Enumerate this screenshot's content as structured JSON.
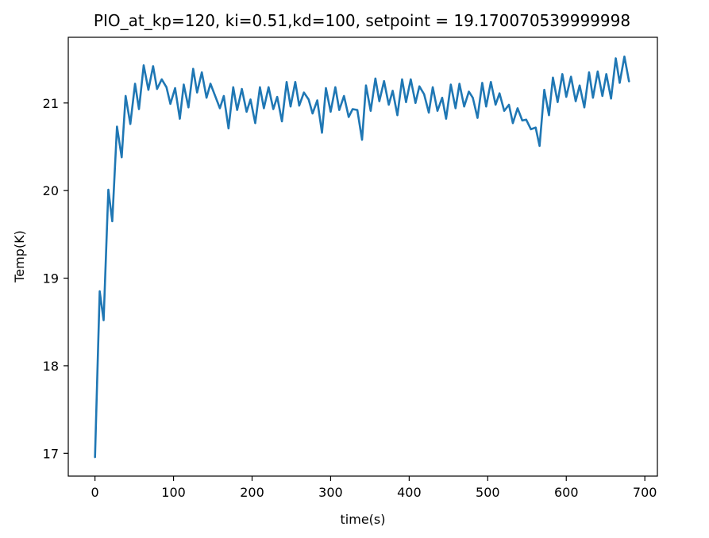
{
  "chart_data": {
    "type": "line",
    "title": "PIO_at_kp=120, ki=0.51,kd=100, setpoint = 19.170070539999998",
    "xlabel": "time(s)",
    "ylabel": "Temp(K)",
    "xlim": [
      -34,
      716
    ],
    "ylim": [
      16.74,
      21.75
    ],
    "xticks": [
      0,
      100,
      200,
      300,
      400,
      500,
      600,
      700
    ],
    "yticks": [
      17,
      18,
      19,
      20,
      21
    ],
    "xtick_labels": [
      "0",
      "100",
      "200",
      "300",
      "400",
      "500",
      "600",
      "700"
    ],
    "ytick_labels": [
      "17",
      "18",
      "19",
      "20",
      "21"
    ],
    "grid": false,
    "colors": {
      "line": "#1f77b4",
      "axes": "#000000",
      "background": "#ffffff"
    },
    "series": [
      {
        "x": [
          0,
          6,
          11,
          17,
          22,
          28,
          34,
          39,
          45,
          51,
          56,
          62,
          68,
          74,
          79,
          85,
          91,
          96,
          102,
          108,
          113,
          119,
          125,
          130,
          136,
          142,
          147,
          153,
          159,
          164,
          170,
          176,
          181,
          187,
          193,
          198,
          204,
          210,
          215,
          221,
          227,
          232,
          238,
          244,
          249,
          255,
          260,
          266,
          272,
          277,
          283,
          289,
          294,
          300,
          306,
          311,
          317,
          323,
          328,
          334,
          340,
          345,
          351,
          357,
          362,
          368,
          374,
          379,
          385,
          391,
          396,
          402,
          408,
          413,
          419,
          425,
          430,
          436,
          442,
          447,
          453,
          459,
          464,
          470,
          476,
          481,
          487,
          493,
          498,
          504,
          510,
          515,
          521,
          527,
          532,
          538,
          544,
          549,
          555,
          561,
          566,
          572,
          578,
          583,
          589,
          595,
          600,
          606,
          612,
          617,
          623,
          629,
          634,
          640,
          646,
          651,
          657,
          663,
          668,
          674,
          680
        ],
        "values": [
          16.95,
          18.85,
          18.52,
          20.01,
          19.65,
          20.73,
          20.38,
          21.08,
          20.76,
          21.22,
          20.93,
          21.43,
          21.15,
          21.42,
          21.16,
          21.27,
          21.18,
          20.99,
          21.17,
          20.82,
          21.21,
          20.95,
          21.39,
          21.12,
          21.35,
          21.06,
          21.22,
          21.08,
          20.94,
          21.08,
          20.71,
          21.18,
          20.92,
          21.16,
          20.9,
          21.04,
          20.77,
          21.18,
          20.94,
          21.18,
          20.93,
          21.07,
          20.79,
          21.24,
          20.96,
          21.24,
          20.97,
          21.12,
          21.04,
          20.88,
          21.03,
          20.66,
          21.17,
          20.9,
          21.18,
          20.92,
          21.08,
          20.84,
          20.93,
          20.92,
          20.58,
          21.2,
          20.91,
          21.28,
          21.02,
          21.25,
          20.98,
          21.14,
          20.86,
          21.27,
          21.01,
          21.27,
          21.0,
          21.19,
          21.1,
          20.89,
          21.18,
          20.91,
          21.06,
          20.82,
          21.21,
          20.94,
          21.22,
          20.96,
          21.13,
          21.06,
          20.83,
          21.23,
          20.96,
          21.24,
          20.98,
          21.11,
          20.91,
          20.98,
          20.77,
          20.94,
          20.8,
          20.81,
          20.7,
          20.72,
          20.51,
          21.15,
          20.86,
          21.29,
          21.01,
          21.33,
          21.07,
          21.3,
          21.02,
          21.2,
          20.95,
          21.35,
          21.06,
          21.36,
          21.08,
          21.33,
          21.05,
          21.51,
          21.23,
          21.53,
          21.24
        ]
      }
    ]
  }
}
